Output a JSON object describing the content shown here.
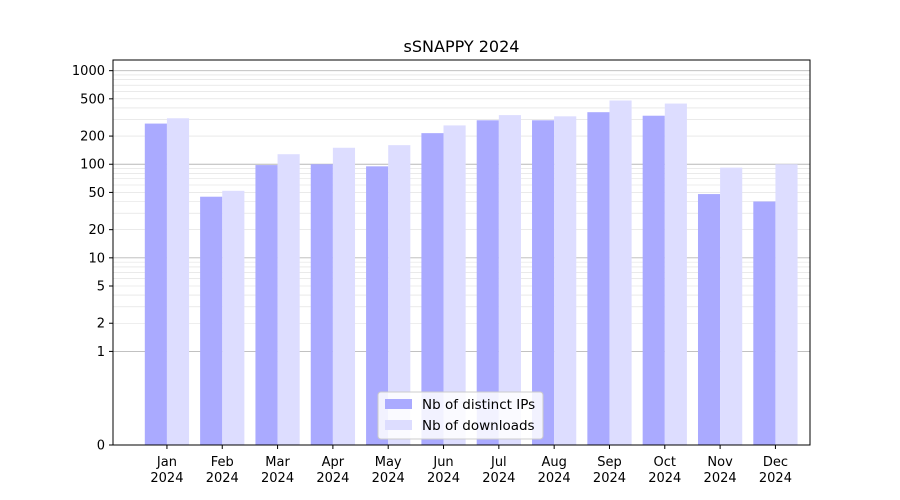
{
  "chart_data": {
    "type": "bar",
    "title": "sSNAPPY 2024",
    "xlabel": "",
    "ylabel": "",
    "y_scale": "symlog",
    "ylim": [
      0,
      1300
    ],
    "y_ticks": [
      0,
      1,
      2,
      5,
      10,
      20,
      50,
      100,
      200,
      500,
      1000
    ],
    "categories": [
      [
        "Jan",
        "2024"
      ],
      [
        "Feb",
        "2024"
      ],
      [
        "Mar",
        "2024"
      ],
      [
        "Apr",
        "2024"
      ],
      [
        "May",
        "2024"
      ],
      [
        "Jun",
        "2024"
      ],
      [
        "Jul",
        "2024"
      ],
      [
        "Aug",
        "2024"
      ],
      [
        "Sep",
        "2024"
      ],
      [
        "Oct",
        "2024"
      ],
      [
        "Nov",
        "2024"
      ],
      [
        "Dec",
        "2024"
      ]
    ],
    "series": [
      {
        "name": "Nb of distinct IPs",
        "color": "#aaaaff",
        "values": [
          272,
          45,
          98,
          100,
          95,
          215,
          295,
          295,
          360,
          330,
          48,
          40
        ]
      },
      {
        "name": "Nb of downloads",
        "color": "#ddddff",
        "values": [
          310,
          52,
          128,
          150,
          160,
          260,
          335,
          325,
          480,
          445,
          92,
          100
        ]
      }
    ],
    "grid": true,
    "legend_position": "bottom-center"
  }
}
